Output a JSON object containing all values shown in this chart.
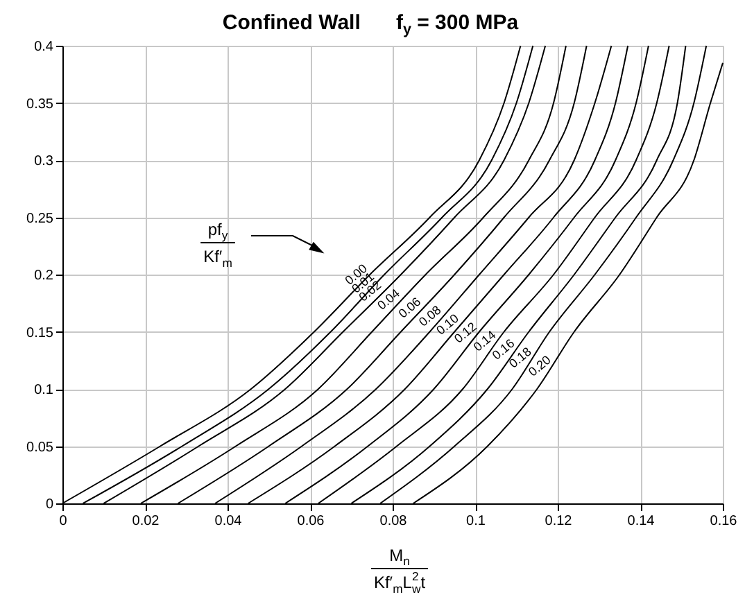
{
  "chart_data": {
    "type": "line",
    "title": "Confined Wall      f$_{y}$ = 300 MPa",
    "xlabel": "M$_{n}$\nKf′$_{m}$L$^{2}$$_{w}$t",
    "legend_title": "pf$_{y}$\nKf′$_{m}$",
    "series": [
      {
        "name": "0.00",
        "color": "#000000",
        "x": [
          0,
          0.0237,
          0.0457,
          0.061,
          0.0745,
          0.089,
          0.101,
          0.107,
          0.111
        ],
        "values": [
          0,
          0.05,
          0.1,
          0.15,
          0.2,
          0.25,
          0.3,
          0.35,
          0.4
        ]
      },
      {
        "name": "0.01",
        "color": "#000000",
        "x": [
          0.005,
          0.029,
          0.05,
          0.065,
          0.078,
          0.092,
          0.104,
          0.11,
          0.114
        ],
        "values": [
          0,
          0.05,
          0.1,
          0.15,
          0.2,
          0.25,
          0.3,
          0.35,
          0.4
        ]
      },
      {
        "name": "0.02",
        "color": "#000000",
        "x": [
          0.01,
          0.033,
          0.054,
          0.068,
          0.082,
          0.095,
          0.107,
          0.113,
          0.117
        ],
        "values": [
          0,
          0.05,
          0.1,
          0.15,
          0.2,
          0.25,
          0.3,
          0.35,
          0.4
        ]
      },
      {
        "name": "0.04",
        "color": "#000000",
        "x": [
          0.019,
          0.042,
          0.062,
          0.075,
          0.088,
          0.102,
          0.113,
          0.119,
          0.122
        ],
        "values": [
          0,
          0.05,
          0.1,
          0.15,
          0.2,
          0.25,
          0.3,
          0.35,
          0.4
        ]
      },
      {
        "name": "0.06",
        "color": "#000000",
        "x": [
          0.028,
          0.05,
          0.069,
          0.082,
          0.095,
          0.107,
          0.118,
          0.124,
          0.127
        ],
        "values": [
          0,
          0.05,
          0.1,
          0.15,
          0.2,
          0.25,
          0.3,
          0.35,
          0.4
        ]
      },
      {
        "name": "0.08",
        "color": "#000000",
        "x": [
          0.037,
          0.058,
          0.076,
          0.089,
          0.101,
          0.113,
          0.124,
          0.129,
          0.133
        ],
        "values": [
          0,
          0.05,
          0.1,
          0.15,
          0.2,
          0.25,
          0.3,
          0.35,
          0.4
        ]
      },
      {
        "name": "0.10",
        "color": "#000000",
        "x": [
          0.045,
          0.066,
          0.083,
          0.095,
          0.107,
          0.119,
          0.129,
          0.134,
          0.137
        ],
        "values": [
          0,
          0.05,
          0.1,
          0.15,
          0.2,
          0.25,
          0.3,
          0.35,
          0.4
        ]
      },
      {
        "name": "0.12",
        "color": "#000000",
        "x": [
          0.054,
          0.074,
          0.09,
          0.101,
          0.113,
          0.124,
          0.134,
          0.139,
          0.142
        ],
        "values": [
          0,
          0.05,
          0.1,
          0.15,
          0.2,
          0.25,
          0.3,
          0.35,
          0.4
        ]
      },
      {
        "name": "0.14",
        "color": "#000000",
        "x": [
          0.062,
          0.081,
          0.097,
          0.107,
          0.119,
          0.129,
          0.139,
          0.144,
          0.147
        ],
        "values": [
          0,
          0.05,
          0.1,
          0.15,
          0.2,
          0.25,
          0.3,
          0.35,
          0.4
        ]
      },
      {
        "name": "0.16",
        "color": "#000000",
        "x": [
          0.07,
          0.089,
          0.103,
          0.113,
          0.124,
          0.134,
          0.144,
          0.149,
          0.151
        ],
        "values": [
          0,
          0.05,
          0.1,
          0.15,
          0.2,
          0.25,
          0.3,
          0.35,
          0.4
        ]
      },
      {
        "name": "0.18",
        "color": "#000000",
        "x": [
          0.077,
          0.095,
          0.109,
          0.118,
          0.129,
          0.139,
          0.148,
          0.153,
          0.156
        ],
        "values": [
          0,
          0.05,
          0.1,
          0.15,
          0.2,
          0.25,
          0.3,
          0.35,
          0.4
        ]
      },
      {
        "name": "0.20",
        "color": "#000000",
        "x": [
          0.085,
          0.103,
          0.115,
          0.124,
          0.135,
          0.144,
          0.153,
          0.157,
          0.16
        ],
        "values": [
          0,
          0.05,
          0.1,
          0.15,
          0.2,
          0.25,
          0.3,
          0.35,
          0.385
        ]
      }
    ],
    "xlim": [
      0,
      0.16
    ],
    "ylim": [
      0,
      0.4
    ],
    "xticks": [
      0,
      0.02,
      0.04,
      0.06,
      0.08,
      0.1,
      0.12,
      0.14,
      0.16
    ],
    "yticks": [
      0,
      0.05,
      0.1,
      0.15,
      0.2,
      0.25,
      0.3,
      0.35,
      0.4
    ],
    "grid": true
  }
}
